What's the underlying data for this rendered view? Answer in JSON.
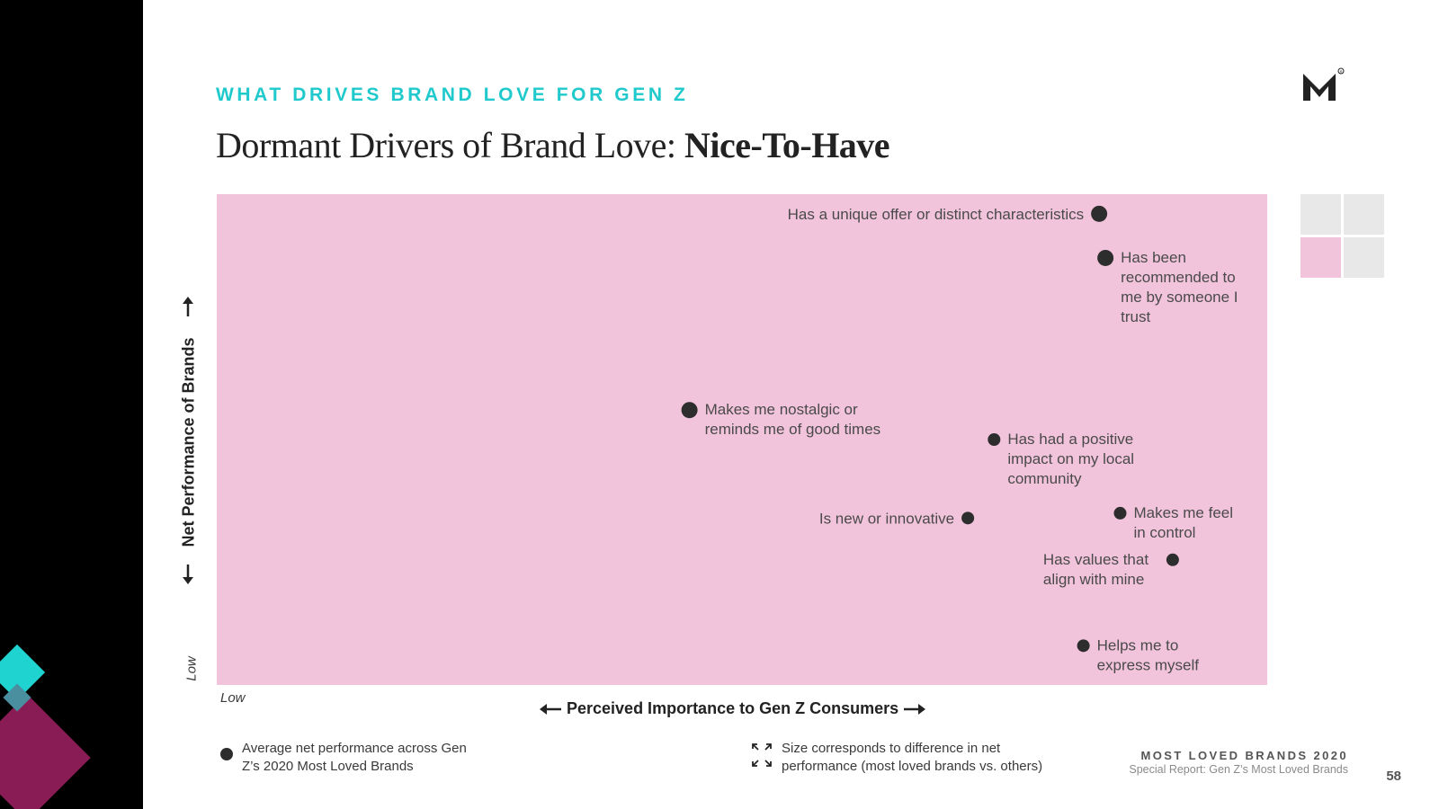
{
  "header": {
    "eyebrow": "WHAT DRIVES BRAND LOVE FOR GEN Z",
    "title_regular": "Dormant Drivers of Brand Love: ",
    "title_bold": "Nice-To-Have"
  },
  "chart_data": {
    "type": "scatter",
    "title": "Dormant Drivers of Brand Love: Nice-To-Have",
    "xlabel": "Perceived Importance to Gen Z Consumers",
    "ylabel": "Net Performance of Brands",
    "x_low_label": "Low",
    "y_low_label": "Low",
    "xlim": [
      0,
      100
    ],
    "ylim": [
      0,
      100
    ],
    "grid": false,
    "background_color": "#f2c4dc",
    "point_color": "#2d2d2d",
    "points": [
      {
        "label": "Has a unique offer or distinct characteristics",
        "x": 84,
        "y": 96,
        "size": 1.0,
        "label_side": "left"
      },
      {
        "label": "Has been recommended to me by someone I trust",
        "x": 84.6,
        "y": 87,
        "size": 1.0,
        "label_side": "right"
      },
      {
        "label": "Makes me nostalgic or reminds me of good times",
        "x": 45,
        "y": 56,
        "size": 1.0,
        "label_side": "right"
      },
      {
        "label": "Has had a positive impact on my local community",
        "x": 74,
        "y": 50,
        "size": 0.8,
        "label_side": "right"
      },
      {
        "label": "Is new or innovative",
        "x": 71.5,
        "y": 34,
        "size": 0.8,
        "label_side": "left"
      },
      {
        "label": "Makes me feel in control",
        "x": 86,
        "y": 35,
        "size": 0.8,
        "label_side": "right"
      },
      {
        "label": "Has values that align with mine",
        "x": 91,
        "y": 25.5,
        "size": 0.8,
        "label_side": "left"
      },
      {
        "label": "Helps me to express myself",
        "x": 82.5,
        "y": 8,
        "size": 0.8,
        "label_side": "right"
      }
    ]
  },
  "legend": {
    "average_text": "Average net performance across Gen Z’s 2020 Most Loved Brands",
    "size_text": "Size corresponds to difference in net performance (most loved brands vs. others)"
  },
  "footer": {
    "title": "MOST LOVED BRANDS 2020",
    "subtitle": "Special Report: Gen Z’s Most Loved Brands",
    "page_number": "58"
  },
  "colors": {
    "accent_teal": "#1fc9cc",
    "quadrant_pink": "#f2c4dc",
    "quadrant_gray": "#e8e8e8",
    "plum": "#8a1c55"
  },
  "icons": {
    "logo": "brand-m-logo",
    "resize": "resize-arrows-icon"
  }
}
